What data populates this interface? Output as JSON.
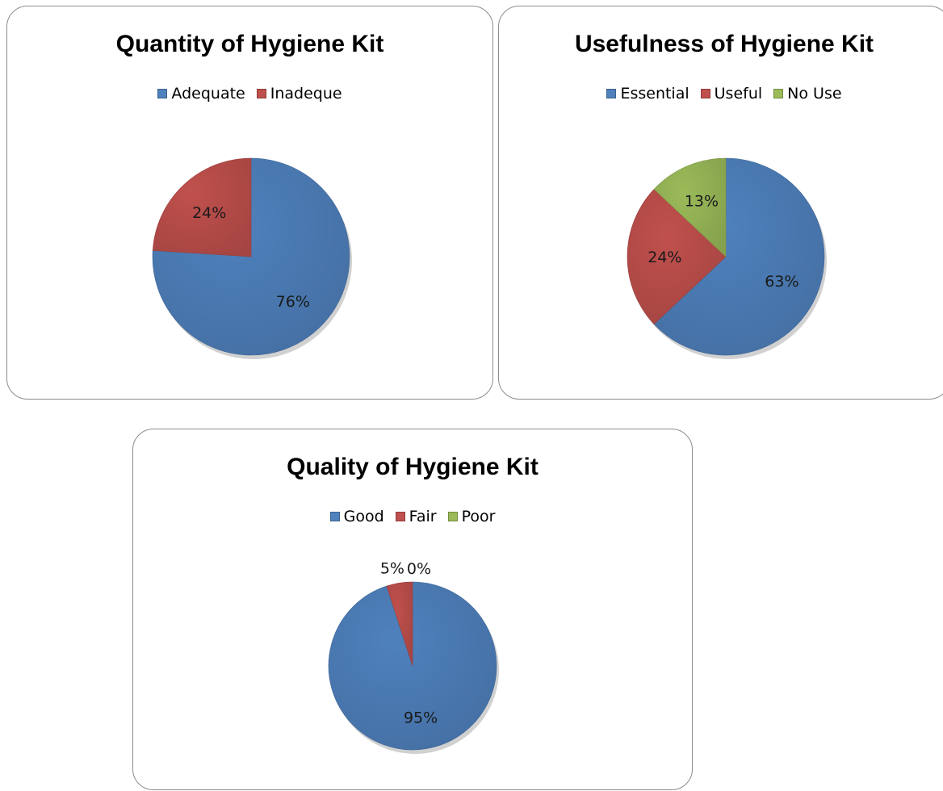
{
  "colors": {
    "blue": "#4f81bd",
    "red": "#c0504d",
    "green": "#9bbb59"
  },
  "chart_data": [
    {
      "type": "pie",
      "title": "Quantity of Hygiene Kit",
      "categories": [
        "Adequate",
        "Inadeque"
      ],
      "values": [
        76,
        24
      ],
      "data_labels": [
        "76%",
        "24%"
      ],
      "colors": [
        "#4f81bd",
        "#c0504d"
      ],
      "legend_position": "top"
    },
    {
      "type": "pie",
      "title": "Usefulness of Hygiene Kit",
      "categories": [
        "Essential",
        "Useful",
        "No Use"
      ],
      "values": [
        63,
        24,
        13
      ],
      "data_labels": [
        "63%",
        "24%",
        "13%"
      ],
      "colors": [
        "#4f81bd",
        "#c0504d",
        "#9bbb59"
      ],
      "legend_position": "top"
    },
    {
      "type": "pie",
      "title": "Quality of Hygiene Kit",
      "categories": [
        "Good",
        "Fair",
        "Poor"
      ],
      "values": [
        95,
        5,
        0
      ],
      "data_labels": [
        "95%",
        "5%",
        "0%"
      ],
      "colors": [
        "#4f81bd",
        "#c0504d",
        "#9bbb59"
      ],
      "legend_position": "top"
    }
  ]
}
